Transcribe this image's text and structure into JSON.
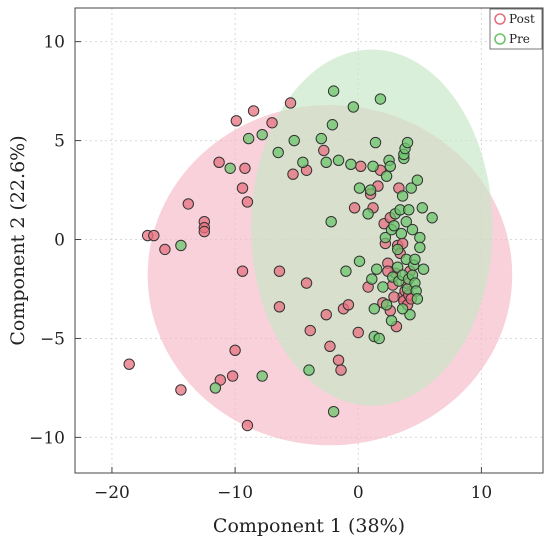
{
  "chart_data": {
    "type": "scatter",
    "title": "",
    "xlabel": "Component 1 (38%)",
    "ylabel": "Component 2 (22.6%)",
    "xlim": [
      -23,
      15
    ],
    "ylim": [
      -11.8,
      11.7
    ],
    "xticks": [
      -20,
      -10,
      0,
      10
    ],
    "yticks": [
      -10,
      -5,
      0,
      5,
      10
    ],
    "xtick_labels": [
      "−20",
      "−10",
      "0",
      "10"
    ],
    "ytick_labels": [
      "−10",
      "−5",
      "0",
      "5",
      "10"
    ],
    "grid": true,
    "legend_position": "top-right",
    "series": [
      {
        "name": "Post",
        "color": "#e8707f",
        "ellipse": {
          "cx": -2.3,
          "cy": -1.8,
          "rx": 14.8,
          "ry": 8.6,
          "fill": "#f4b9c6"
        },
        "points": [
          [
            -18.6,
            -6.3
          ],
          [
            -17.1,
            0.2
          ],
          [
            -16.6,
            0.2
          ],
          [
            -15.7,
            -0.5
          ],
          [
            -14.4,
            -7.6
          ],
          [
            -13.8,
            1.8
          ],
          [
            -12.5,
            0.9
          ],
          [
            -12.5,
            0.6
          ],
          [
            -12.5,
            0.4
          ],
          [
            -11.3,
            3.9
          ],
          [
            -11.2,
            -7.1
          ],
          [
            -10.2,
            -6.9
          ],
          [
            -10.0,
            -5.6
          ],
          [
            -9.9,
            6.0
          ],
          [
            -9.4,
            -1.6
          ],
          [
            -9.2,
            3.6
          ],
          [
            -9.0,
            -9.4
          ],
          [
            -9.4,
            2.6
          ],
          [
            -8.5,
            6.5
          ],
          [
            -9.0,
            1.9
          ],
          [
            -7.0,
            5.9
          ],
          [
            -6.4,
            -1.6
          ],
          [
            -6.4,
            -3.4
          ],
          [
            -5.5,
            6.9
          ],
          [
            -5.3,
            3.3
          ],
          [
            -4.2,
            3.5
          ],
          [
            -4.2,
            -2.2
          ],
          [
            -3.9,
            -4.6
          ],
          [
            -2.8,
            4.5
          ],
          [
            -2.6,
            -3.8
          ],
          [
            -2.3,
            -5.4
          ],
          [
            -1.6,
            -6.1
          ],
          [
            -1.4,
            -6.6
          ],
          [
            -1.2,
            -3.5
          ],
          [
            -0.8,
            -3.3
          ],
          [
            -0.3,
            1.6
          ],
          [
            0.0,
            -4.7
          ],
          [
            0.2,
            3.7
          ],
          [
            0.8,
            -2.4
          ],
          [
            1.0,
            2.3
          ],
          [
            1.2,
            1.6
          ],
          [
            1.6,
            2.7
          ],
          [
            1.8,
            3.5
          ],
          [
            2.0,
            -3.2
          ],
          [
            2.1,
            0.8
          ],
          [
            2.4,
            -1.2
          ],
          [
            2.6,
            1.1
          ],
          [
            2.8,
            -2.3
          ],
          [
            3.0,
            -1.7
          ],
          [
            3.2,
            -0.3
          ],
          [
            3.4,
            -0.7
          ],
          [
            3.6,
            -2.9
          ],
          [
            3.7,
            -3.1
          ],
          [
            3.8,
            -2.6
          ],
          [
            3.9,
            -2.2
          ],
          [
            4.0,
            -3.3
          ],
          [
            4.1,
            -2.8
          ],
          [
            4.2,
            -1.6
          ],
          [
            4.3,
            -3.0
          ],
          [
            3.3,
            2.6
          ],
          [
            3.6,
            -0.2
          ],
          [
            2.9,
            -2.9
          ],
          [
            2.2,
            -0.2
          ],
          [
            2.6,
            -3.6
          ],
          [
            2.4,
            -1.6
          ],
          [
            3.1,
            -4.4
          ]
        ]
      },
      {
        "name": "Pre",
        "color": "#6cc56c",
        "ellipse": {
          "cx": 1.1,
          "cy": 0.6,
          "rx": 9.8,
          "ry": 9.0,
          "fill": "#c6e6c6"
        },
        "points": [
          [
            -14.4,
            -0.3
          ],
          [
            -11.6,
            -7.5
          ],
          [
            -10.4,
            3.6
          ],
          [
            -8.9,
            5.1
          ],
          [
            -7.8,
            5.3
          ],
          [
            -7.8,
            -6.9
          ],
          [
            -6.5,
            4.4
          ],
          [
            -5.2,
            5.0
          ],
          [
            -4.5,
            3.9
          ],
          [
            -4.0,
            -6.6
          ],
          [
            -3.0,
            5.1
          ],
          [
            -2.6,
            3.9
          ],
          [
            -2.1,
            5.8
          ],
          [
            -2.2,
            0.9
          ],
          [
            -2.0,
            7.5
          ],
          [
            -2.0,
            -8.7
          ],
          [
            -1.6,
            4.0
          ],
          [
            -1.0,
            -1.6
          ],
          [
            -0.6,
            3.8
          ],
          [
            -0.4,
            6.7
          ],
          [
            0.1,
            2.6
          ],
          [
            0.1,
            -1.1
          ],
          [
            0.8,
            1.3
          ],
          [
            1.0,
            2.5
          ],
          [
            1.1,
            -2.0
          ],
          [
            1.3,
            -4.9
          ],
          [
            1.3,
            -3.5
          ],
          [
            1.4,
            4.9
          ],
          [
            1.5,
            -1.5
          ],
          [
            1.7,
            -5.0
          ],
          [
            1.8,
            7.1
          ],
          [
            2.0,
            -2.4
          ],
          [
            2.2,
            0.1
          ],
          [
            2.3,
            -3.3
          ],
          [
            2.3,
            3.2
          ],
          [
            2.5,
            4.0
          ],
          [
            2.6,
            3.7
          ],
          [
            2.7,
            0.5
          ],
          [
            2.8,
            -1.9
          ],
          [
            2.9,
            0.7
          ],
          [
            3.0,
            1.3
          ],
          [
            3.2,
            -0.5
          ],
          [
            3.2,
            -1.4
          ],
          [
            3.3,
            -2.1
          ],
          [
            3.4,
            1.5
          ],
          [
            3.5,
            0.3
          ],
          [
            3.6,
            2.2
          ],
          [
            3.6,
            -1.8
          ],
          [
            3.7,
            4.1
          ],
          [
            3.7,
            4.3
          ],
          [
            3.8,
            4.6
          ],
          [
            3.9,
            0.9
          ],
          [
            3.9,
            -1.0
          ],
          [
            4.0,
            -2.5
          ],
          [
            4.0,
            4.9
          ],
          [
            4.1,
            1.5
          ],
          [
            4.1,
            -2.0
          ],
          [
            4.2,
            -3.8
          ],
          [
            4.3,
            2.6
          ],
          [
            4.4,
            0.5
          ],
          [
            4.4,
            -1.8
          ],
          [
            4.5,
            -1.3
          ],
          [
            4.6,
            -1.0
          ],
          [
            4.6,
            -2.2
          ],
          [
            4.7,
            -2.6
          ],
          [
            4.8,
            3.0
          ],
          [
            4.8,
            -3.0
          ],
          [
            5.0,
            0.1
          ],
          [
            5.0,
            -0.4
          ],
          [
            5.2,
            1.6
          ],
          [
            5.3,
            -1.5
          ],
          [
            6.0,
            1.1
          ],
          [
            3.6,
            -3.5
          ],
          [
            2.7,
            -4.1
          ],
          [
            1.2,
            3.7
          ]
        ]
      }
    ]
  }
}
